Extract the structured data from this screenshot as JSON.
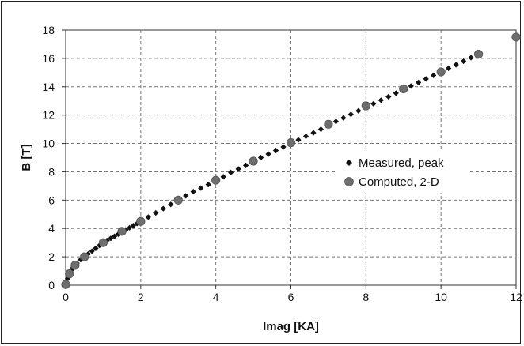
{
  "chart_data": {
    "type": "scatter",
    "xlabel": "Imag [KA]",
    "ylabel": "B [T]",
    "xlim": [
      0,
      12
    ],
    "ylim": [
      0,
      18
    ],
    "xticks": [
      "0",
      "2",
      "4",
      "6",
      "8",
      "10",
      "12"
    ],
    "yticks": [
      "0",
      "2",
      "4",
      "6",
      "8",
      "10",
      "12",
      "14",
      "16",
      "18"
    ],
    "grid": true,
    "legend_position": "right-center",
    "series": [
      {
        "name": "Measured, peak",
        "marker": "diamond",
        "color": "#111111",
        "points": [
          [
            0,
            0
          ],
          [
            0.05,
            0.45
          ],
          [
            0.1,
            0.8
          ],
          [
            0.15,
            1.05
          ],
          [
            0.2,
            1.25
          ],
          [
            0.3,
            1.55
          ],
          [
            0.4,
            1.8
          ],
          [
            0.5,
            2.0
          ],
          [
            0.6,
            2.2
          ],
          [
            0.7,
            2.4
          ],
          [
            0.8,
            2.6
          ],
          [
            0.9,
            2.8
          ],
          [
            1.0,
            3.0
          ],
          [
            1.1,
            3.15
          ],
          [
            1.2,
            3.3
          ],
          [
            1.3,
            3.45
          ],
          [
            1.4,
            3.6
          ],
          [
            1.5,
            3.75
          ],
          [
            1.6,
            3.9
          ],
          [
            1.7,
            4.05
          ],
          [
            1.8,
            4.2
          ],
          [
            1.9,
            4.35
          ],
          [
            2.0,
            4.5
          ],
          [
            2.2,
            4.8
          ],
          [
            2.4,
            5.1
          ],
          [
            2.6,
            5.4
          ],
          [
            2.8,
            5.7
          ],
          [
            3.0,
            6.0
          ],
          [
            3.2,
            6.3
          ],
          [
            3.4,
            6.6
          ],
          [
            3.6,
            6.85
          ],
          [
            3.8,
            7.1
          ],
          [
            4.0,
            7.35
          ],
          [
            4.2,
            7.65
          ],
          [
            4.4,
            7.95
          ],
          [
            4.6,
            8.2
          ],
          [
            4.8,
            8.45
          ],
          [
            5.0,
            8.7
          ],
          [
            5.2,
            9.0
          ],
          [
            5.4,
            9.25
          ],
          [
            5.6,
            9.5
          ],
          [
            5.8,
            9.75
          ],
          [
            6.0,
            10.0
          ],
          [
            6.2,
            10.25
          ],
          [
            6.4,
            10.5
          ],
          [
            6.6,
            10.75
          ],
          [
            6.8,
            11.0
          ],
          [
            7.0,
            11.3
          ],
          [
            7.2,
            11.55
          ],
          [
            7.4,
            11.8
          ],
          [
            7.6,
            12.05
          ],
          [
            7.8,
            12.3
          ],
          [
            8.0,
            12.55
          ],
          [
            8.2,
            12.8
          ],
          [
            8.4,
            13.05
          ],
          [
            8.6,
            13.3
          ],
          [
            8.8,
            13.55
          ],
          [
            9.0,
            13.8
          ],
          [
            9.2,
            14.05
          ],
          [
            9.4,
            14.3
          ],
          [
            9.6,
            14.55
          ],
          [
            9.8,
            14.8
          ],
          [
            10.0,
            15.05
          ],
          [
            10.2,
            15.3
          ],
          [
            10.4,
            15.55
          ],
          [
            10.6,
            15.8
          ],
          [
            10.8,
            16.05
          ]
        ]
      },
      {
        "name": "Computed, 2-D",
        "marker": "circle",
        "color": "#6e6e6e",
        "points": [
          [
            0,
            0.05
          ],
          [
            0.1,
            0.8
          ],
          [
            0.25,
            1.4
          ],
          [
            0.5,
            2.0
          ],
          [
            1.0,
            3.0
          ],
          [
            1.5,
            3.8
          ],
          [
            2.0,
            4.5
          ],
          [
            3.0,
            6.0
          ],
          [
            4.0,
            7.4
          ],
          [
            5.0,
            8.75
          ],
          [
            6.0,
            10.05
          ],
          [
            7.0,
            11.35
          ],
          [
            8.0,
            12.65
          ],
          [
            9.0,
            13.85
          ],
          [
            10.0,
            15.05
          ],
          [
            11.0,
            16.3
          ],
          [
            12.0,
            17.5
          ]
        ]
      }
    ]
  }
}
